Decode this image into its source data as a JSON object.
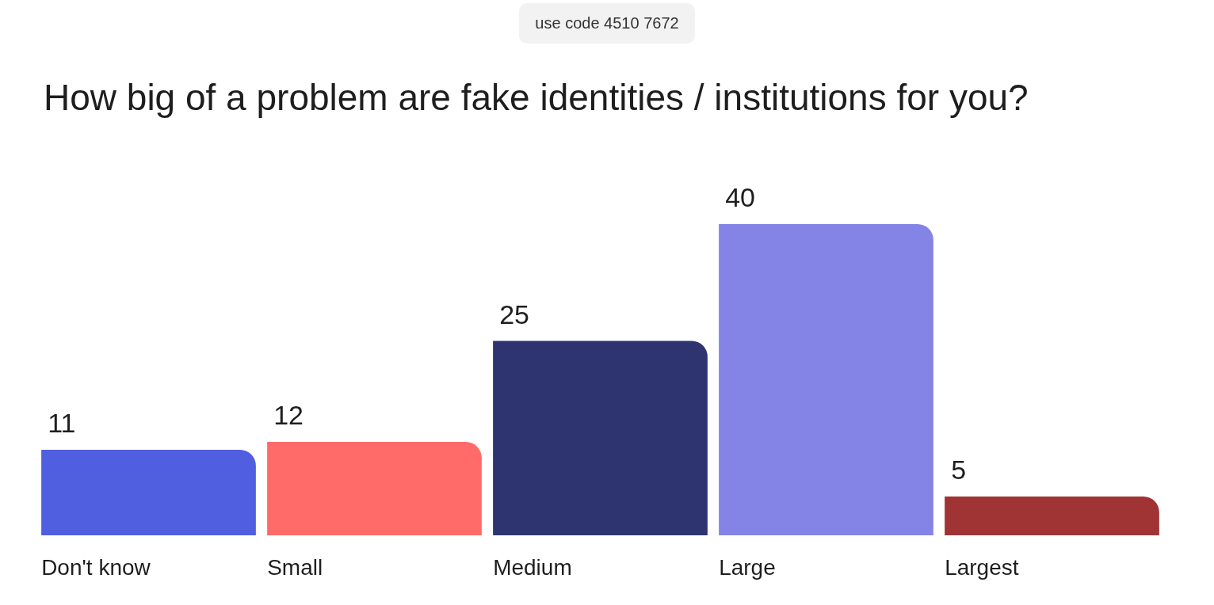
{
  "chart_data": {
    "type": "bar",
    "title": "How big of a problem are fake identities / institutions for you?",
    "categories": [
      "Don't know",
      "Small",
      "Medium",
      "Large",
      "Largest"
    ],
    "values": [
      11,
      12,
      25,
      40,
      5
    ],
    "colors": [
      "#4f5fe0",
      "#ff6b69",
      "#2d3470",
      "#8484e6",
      "#a03434"
    ],
    "data_labels": true,
    "grid": false,
    "legend": false,
    "annotations": [
      "use code 4510 7672"
    ]
  }
}
